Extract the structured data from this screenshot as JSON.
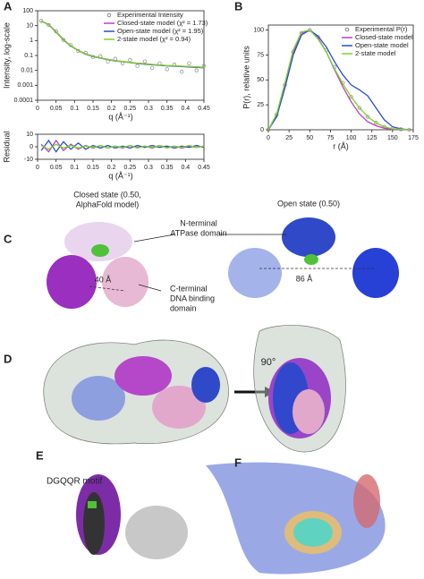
{
  "chart_data": [
    {
      "type": "line",
      "panel": "A",
      "log_y": true,
      "legend": "upper right",
      "y_label": "Intensity, log-scale",
      "x_label": "q (Å⁻¹)",
      "x": [
        0.01,
        0.03,
        0.05,
        0.07,
        0.09,
        0.11,
        0.13,
        0.15,
        0.17,
        0.19,
        0.21,
        0.23,
        0.25,
        0.27,
        0.29,
        0.31,
        0.33,
        0.35,
        0.37,
        0.39,
        0.41,
        0.43,
        0.45
      ],
      "xlim": [
        0,
        0.45
      ],
      "xticks": [
        0,
        0.05,
        0.1,
        0.15,
        0.2,
        0.25,
        0.3,
        0.35,
        0.4,
        0.45
      ],
      "ylim": [
        0.0001,
        100
      ],
      "yticks": [
        100,
        10,
        1,
        0.1,
        0.01,
        0.001,
        0.0001
      ],
      "series": [
        {
          "name": "Experimental Intensity",
          "color": "#888888",
          "marker": "circle",
          "values": [
            21,
            11,
            4.2,
            1.1,
            0.5,
            0.2,
            0.15,
            0.08,
            0.09,
            0.04,
            0.06,
            0.03,
            0.05,
            0.02,
            0.04,
            0.015,
            0.03,
            0.012,
            0.025,
            0.008,
            0.03,
            0.01,
            0.02
          ]
        },
        {
          "name": "Closed-state model (χ² = 1.73)",
          "color": "#c03cc0",
          "values": [
            20,
            12,
            4,
            1.2,
            0.45,
            0.22,
            0.13,
            0.09,
            0.07,
            0.055,
            0.045,
            0.04,
            0.035,
            0.03,
            0.028,
            0.025,
            0.023,
            0.021,
            0.02,
            0.019,
            0.018,
            0.017,
            0.016
          ]
        },
        {
          "name": "Open-state model (χ² = 1.95)",
          "color": "#2a4bd7",
          "values": [
            20,
            11.5,
            3.7,
            1.1,
            0.42,
            0.21,
            0.12,
            0.085,
            0.066,
            0.052,
            0.043,
            0.038,
            0.033,
            0.029,
            0.026,
            0.024,
            0.022,
            0.02,
            0.019,
            0.018,
            0.017,
            0.016,
            0.015
          ]
        },
        {
          "name": "2-state model (χ² = 0.94)",
          "color": "#7ed321",
          "values": [
            20,
            11.8,
            3.9,
            1.15,
            0.44,
            0.215,
            0.125,
            0.088,
            0.068,
            0.054,
            0.044,
            0.039,
            0.034,
            0.03,
            0.027,
            0.025,
            0.023,
            0.021,
            0.02,
            0.019,
            0.018,
            0.017,
            0.016
          ]
        }
      ]
    },
    {
      "type": "line",
      "panel": "A",
      "log_y": false,
      "y_label": "Residual",
      "x_label": "q (Å⁻¹)",
      "x": [
        0.01,
        0.03,
        0.05,
        0.07,
        0.09,
        0.11,
        0.13,
        0.15,
        0.17,
        0.19,
        0.21,
        0.23,
        0.25,
        0.27,
        0.29,
        0.31,
        0.33,
        0.35,
        0.37,
        0.39,
        0.41,
        0.43,
        0.45
      ],
      "xlim": [
        0,
        0.45
      ],
      "xticks": [
        0,
        0.05,
        0.1,
        0.15,
        0.2,
        0.25,
        0.3,
        0.35,
        0.4,
        0.45
      ],
      "ylim": [
        -10,
        10
      ],
      "yticks": [
        -10,
        0,
        10
      ],
      "series": [
        {
          "name": "Closed-state model (χ² = 1.73)",
          "color": "#c03cc0",
          "values": [
            2,
            -4,
            5,
            -3,
            2,
            -2,
            1,
            -1,
            1,
            -1,
            0.5,
            -1,
            1,
            -0.5,
            0.5,
            -1,
            1,
            -0.5,
            0.5,
            -1,
            0.5,
            -0.5,
            0.5
          ]
        },
        {
          "name": "Open-state model (χ² = 1.95)",
          "color": "#2a4bd7",
          "values": [
            -3,
            5,
            -4,
            4,
            -2,
            3,
            -2,
            1,
            -1,
            1,
            -1,
            0.5,
            -1,
            1,
            -0.5,
            1,
            -0.5,
            0.5,
            -1,
            0.5,
            -0.5,
            1,
            -0.5
          ]
        },
        {
          "name": "2-state model (χ² = 0.94)",
          "color": "#7ed321",
          "values": [
            1,
            -2,
            2,
            -1,
            1,
            -1,
            0.5,
            -0.5,
            1,
            -1,
            0.5,
            -0.5,
            1,
            -1,
            0.5,
            -0.5,
            1,
            -1,
            0.5,
            -0.5,
            1,
            -0.5,
            0.5
          ]
        }
      ]
    },
    {
      "type": "line",
      "panel": "B",
      "log_y": false,
      "legend": "upper right",
      "y_label": "P(r), relative units",
      "x_label": "r (Å)",
      "x": [
        0,
        10,
        20,
        30,
        40,
        50,
        60,
        70,
        80,
        90,
        100,
        110,
        120,
        130,
        140,
        150,
        160,
        170
      ],
      "xlim": [
        0,
        175
      ],
      "xticks": [
        0,
        25,
        50,
        75,
        100,
        125,
        150,
        175
      ],
      "ylim": [
        0,
        105
      ],
      "yticks": [
        0,
        25,
        50,
        75,
        100
      ],
      "series": [
        {
          "name": "Experimental P(r)",
          "color": "#888888",
          "marker": "circle",
          "values": [
            0,
            15,
            45,
            78,
            97,
            100,
            93,
            80,
            63,
            47,
            33,
            22,
            13,
            7,
            3,
            1,
            0.5,
            0
          ]
        },
        {
          "name": "Closed-state model",
          "color": "#c03cc0",
          "values": [
            0,
            14,
            44,
            77,
            97,
            100,
            92,
            78,
            60,
            43,
            28,
            16,
            8,
            4,
            1.5,
            0.5,
            0,
            0
          ]
        },
        {
          "name": "Open-state model",
          "color": "#2a4bd7",
          "values": [
            0,
            13,
            42,
            75,
            95,
            100,
            94,
            83,
            68,
            55,
            45,
            40,
            34,
            22,
            10,
            3,
            1,
            0
          ]
        },
        {
          "name": "2-state model",
          "color": "#7ed321",
          "values": [
            0,
            16,
            47,
            80,
            98,
            100,
            91,
            78,
            61,
            46,
            33,
            22,
            13,
            7,
            3,
            1,
            0.5,
            0
          ]
        }
      ]
    }
  ],
  "panels": {
    "letters": [
      "A",
      "B",
      "C",
      "D",
      "E",
      "F"
    ],
    "closed_label": [
      "Closed state (0.50,",
      "AlphaFold model)"
    ],
    "open_label": "Open state (0.50)",
    "n_terminal": [
      "N-terminal",
      "ATPase domain"
    ],
    "c_terminal": [
      "C-terminal",
      "DNA binding",
      "domain"
    ],
    "dist_closed": "40 Å",
    "dist_open": "86 Å",
    "rotation": "90°",
    "motif": "DGQQR motif"
  }
}
